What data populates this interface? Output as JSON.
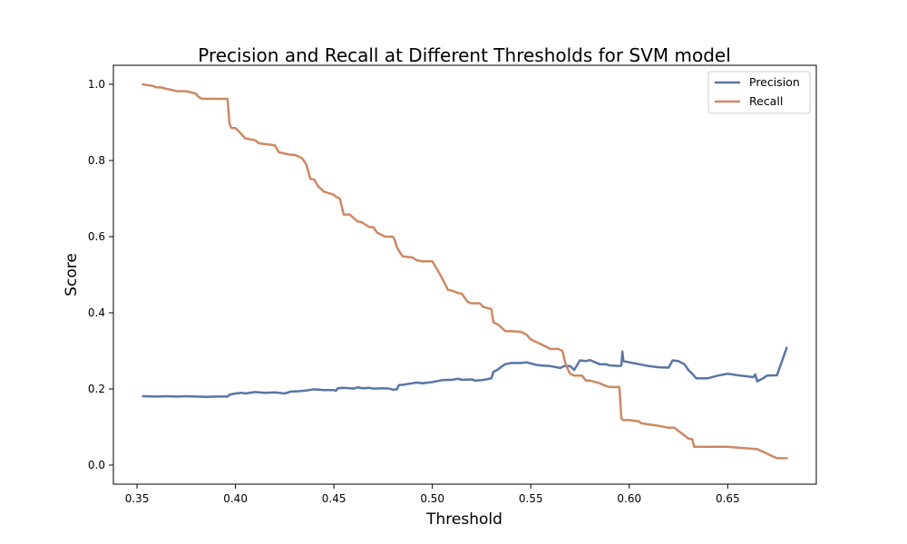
{
  "chart_data": {
    "type": "line",
    "title": "Precision and Recall at Different Thresholds for SVM  model",
    "xlabel": "Threshold",
    "ylabel": "Score",
    "xlim": [
      0.338,
      0.695
    ],
    "ylim": [
      -0.05,
      1.05
    ],
    "xticks": [
      0.35,
      0.4,
      0.45,
      0.5,
      0.55,
      0.6,
      0.65
    ],
    "xtick_labels": [
      "0.35",
      "0.40",
      "0.45",
      "0.50",
      "0.55",
      "0.60",
      "0.65"
    ],
    "yticks": [
      0.0,
      0.2,
      0.4,
      0.6,
      0.8,
      1.0
    ],
    "ytick_labels": [
      "0.0",
      "0.2",
      "0.4",
      "0.6",
      "0.8",
      "1.0"
    ],
    "grid": false,
    "legend_position": "top-right",
    "series": [
      {
        "name": "Precision",
        "color": "#5975a4",
        "x": [
          0.353,
          0.36,
          0.365,
          0.37,
          0.375,
          0.38,
          0.385,
          0.39,
          0.396,
          0.397,
          0.4,
          0.403,
          0.405,
          0.41,
          0.415,
          0.42,
          0.425,
          0.428,
          0.432,
          0.436,
          0.44,
          0.445,
          0.45,
          0.451,
          0.452,
          0.455,
          0.46,
          0.462,
          0.465,
          0.468,
          0.47,
          0.475,
          0.478,
          0.48,
          0.482,
          0.483,
          0.485,
          0.49,
          0.492,
          0.495,
          0.5,
          0.505,
          0.51,
          0.513,
          0.515,
          0.52,
          0.522,
          0.525,
          0.528,
          0.53,
          0.531,
          0.533,
          0.535,
          0.537,
          0.54,
          0.545,
          0.548,
          0.55,
          0.553,
          0.555,
          0.56,
          0.565,
          0.567,
          0.57,
          0.572,
          0.575,
          0.578,
          0.58,
          0.585,
          0.588,
          0.59,
          0.595,
          0.596,
          0.5965,
          0.597,
          0.6,
          0.605,
          0.61,
          0.615,
          0.62,
          0.622,
          0.625,
          0.628,
          0.63,
          0.632,
          0.634,
          0.64,
          0.645,
          0.65,
          0.655,
          0.66,
          0.663,
          0.664,
          0.665,
          0.668,
          0.67,
          0.675,
          0.68
        ],
        "values": [
          0.181,
          0.18,
          0.181,
          0.18,
          0.181,
          0.18,
          0.179,
          0.18,
          0.18,
          0.185,
          0.188,
          0.19,
          0.188,
          0.192,
          0.19,
          0.191,
          0.188,
          0.193,
          0.194,
          0.196,
          0.199,
          0.197,
          0.197,
          0.195,
          0.202,
          0.203,
          0.201,
          0.204,
          0.202,
          0.203,
          0.201,
          0.202,
          0.201,
          0.198,
          0.199,
          0.21,
          0.211,
          0.215,
          0.217,
          0.215,
          0.218,
          0.223,
          0.224,
          0.227,
          0.224,
          0.225,
          0.222,
          0.223,
          0.226,
          0.228,
          0.245,
          0.25,
          0.258,
          0.265,
          0.268,
          0.268,
          0.27,
          0.267,
          0.263,
          0.262,
          0.26,
          0.255,
          0.26,
          0.26,
          0.25,
          0.275,
          0.273,
          0.276,
          0.265,
          0.265,
          0.262,
          0.26,
          0.262,
          0.298,
          0.273,
          0.27,
          0.265,
          0.26,
          0.257,
          0.256,
          0.275,
          0.273,
          0.265,
          0.25,
          0.24,
          0.228,
          0.228,
          0.235,
          0.24,
          0.236,
          0.233,
          0.231,
          0.238,
          0.22,
          0.228,
          0.235,
          0.236,
          0.308
        ]
      },
      {
        "name": "Recall",
        "color": "#cc8963",
        "x": [
          0.353,
          0.355,
          0.358,
          0.36,
          0.362,
          0.365,
          0.368,
          0.37,
          0.375,
          0.378,
          0.38,
          0.381,
          0.383,
          0.39,
          0.396,
          0.397,
          0.398,
          0.4,
          0.402,
          0.405,
          0.41,
          0.412,
          0.415,
          0.42,
          0.422,
          0.425,
          0.428,
          0.43,
          0.433,
          0.434,
          0.436,
          0.438,
          0.44,
          0.442,
          0.445,
          0.45,
          0.451,
          0.453,
          0.455,
          0.458,
          0.462,
          0.464,
          0.468,
          0.47,
          0.472,
          0.476,
          0.48,
          0.481,
          0.482,
          0.484,
          0.485,
          0.49,
          0.492,
          0.495,
          0.5,
          0.504,
          0.508,
          0.51,
          0.513,
          0.515,
          0.518,
          0.52,
          0.524,
          0.526,
          0.53,
          0.531,
          0.533,
          0.535,
          0.537,
          0.54,
          0.545,
          0.548,
          0.55,
          0.552,
          0.555,
          0.56,
          0.562,
          0.564,
          0.566,
          0.568,
          0.569,
          0.57,
          0.572,
          0.576,
          0.578,
          0.58,
          0.585,
          0.588,
          0.59,
          0.595,
          0.596,
          0.597,
          0.6,
          0.605,
          0.606,
          0.61,
          0.615,
          0.62,
          0.623,
          0.625,
          0.63,
          0.632,
          0.633,
          0.64,
          0.65,
          0.655,
          0.66,
          0.665,
          0.668,
          0.672,
          0.675,
          0.68
        ],
        "values": [
          1.0,
          0.998,
          0.996,
          0.992,
          0.992,
          0.988,
          0.985,
          0.982,
          0.982,
          0.978,
          0.975,
          0.968,
          0.962,
          0.962,
          0.962,
          0.895,
          0.885,
          0.885,
          0.875,
          0.858,
          0.853,
          0.845,
          0.843,
          0.84,
          0.822,
          0.818,
          0.815,
          0.815,
          0.808,
          0.805,
          0.79,
          0.752,
          0.75,
          0.732,
          0.718,
          0.71,
          0.705,
          0.7,
          0.658,
          0.658,
          0.64,
          0.638,
          0.625,
          0.625,
          0.61,
          0.6,
          0.6,
          0.59,
          0.572,
          0.555,
          0.548,
          0.545,
          0.538,
          0.535,
          0.535,
          0.5,
          0.46,
          0.458,
          0.452,
          0.45,
          0.428,
          0.425,
          0.425,
          0.415,
          0.41,
          0.375,
          0.37,
          0.362,
          0.352,
          0.352,
          0.35,
          0.342,
          0.33,
          0.325,
          0.318,
          0.305,
          0.305,
          0.305,
          0.3,
          0.26,
          0.25,
          0.24,
          0.235,
          0.235,
          0.222,
          0.222,
          0.215,
          0.208,
          0.205,
          0.205,
          0.122,
          0.118,
          0.118,
          0.115,
          0.11,
          0.107,
          0.103,
          0.098,
          0.098,
          0.09,
          0.07,
          0.068,
          0.048,
          0.048,
          0.048,
          0.046,
          0.044,
          0.042,
          0.035,
          0.025,
          0.018,
          0.018
        ]
      }
    ]
  }
}
